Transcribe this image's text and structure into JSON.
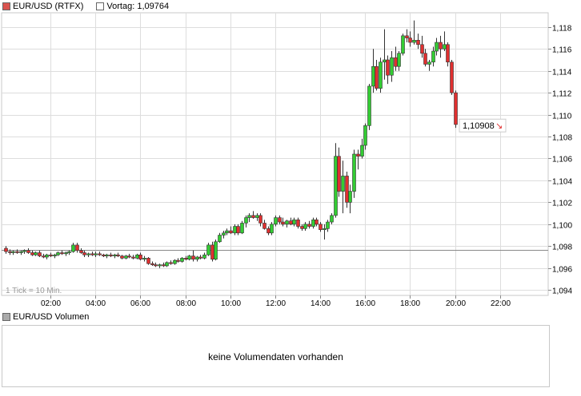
{
  "legend": {
    "series_label": "EUR/USD (RTFX)",
    "series_color": "#d9534f",
    "prev_label": "Vortag: 1,09764",
    "prev_color": "#ffffff"
  },
  "last_price_label": "1,10908",
  "last_price_arrow": "↘",
  "tick_note": "1 Tick = 10 Min.",
  "volume": {
    "legend_label": "EUR/USD Volumen",
    "legend_color": "#aaaaaa",
    "message": "keine Volumendaten vorhanden"
  },
  "colors": {
    "up": "#33cc33",
    "down": "#e03030",
    "grid": "#dddddd",
    "prev_line": "#888888"
  },
  "chart_data": {
    "type": "candlestick",
    "x_unit": "hours",
    "xlim": [
      0.0,
      24.5
    ],
    "ylim": [
      1.0935,
      1.1193
    ],
    "x_ticks": [
      2,
      4,
      6,
      8,
      10,
      12,
      14,
      16,
      18,
      20,
      22
    ],
    "x_tick_labels": [
      "02:00",
      "04:00",
      "06:00",
      "08:00",
      "10:00",
      "12:00",
      "14:00",
      "16:00",
      "18:00",
      "20:00",
      "22:00"
    ],
    "y_ticks": [
      1.094,
      1.096,
      1.098,
      1.1,
      1.102,
      1.104,
      1.106,
      1.108,
      1.11,
      1.112,
      1.114,
      1.116,
      1.118
    ],
    "y_tick_labels": [
      "1,094",
      "1,096",
      "1,098",
      "1,100",
      "1,102",
      "1,104",
      "1,106",
      "1,108",
      "1,110",
      "1,112",
      "1,114",
      "1,116",
      "1,118"
    ],
    "previous_close": 1.09764,
    "last": 1.10908,
    "grid": true,
    "candles": [
      [
        0.0,
        1.0978,
        1.098,
        1.0973,
        1.0975
      ],
      [
        0.17,
        1.0975,
        1.0977,
        1.0972,
        1.0974
      ],
      [
        0.33,
        1.0974,
        1.0976,
        1.0972,
        1.0975
      ],
      [
        0.5,
        1.0975,
        1.0977,
        1.0973,
        1.0974
      ],
      [
        0.67,
        1.0974,
        1.0976,
        1.0972,
        1.0975
      ],
      [
        0.83,
        1.0975,
        1.0977,
        1.0973,
        1.0976
      ],
      [
        1.0,
        1.0976,
        1.0978,
        1.0973,
        1.0974
      ],
      [
        1.17,
        1.0974,
        1.0976,
        1.0971,
        1.0972
      ],
      [
        1.33,
        1.0972,
        1.0975,
        1.0971,
        1.0974
      ],
      [
        1.5,
        1.0974,
        1.0976,
        1.097,
        1.0971
      ],
      [
        1.67,
        1.0971,
        1.0973,
        1.0969,
        1.097
      ],
      [
        1.83,
        1.097,
        1.0973,
        1.0968,
        1.0972
      ],
      [
        2.0,
        1.0972,
        1.0974,
        1.097,
        1.0971
      ],
      [
        2.17,
        1.0971,
        1.0973,
        1.0969,
        1.0972
      ],
      [
        2.33,
        1.0972,
        1.0975,
        1.0971,
        1.0974
      ],
      [
        2.5,
        1.0974,
        1.0976,
        1.0972,
        1.0973
      ],
      [
        2.67,
        1.0973,
        1.0975,
        1.0971,
        1.0974
      ],
      [
        2.83,
        1.0974,
        1.0976,
        1.0972,
        1.0975
      ],
      [
        3.0,
        1.0975,
        1.0983,
        1.0974,
        1.0981
      ],
      [
        3.17,
        1.0981,
        1.0983,
        1.0974,
        1.0976
      ],
      [
        3.33,
        1.0976,
        1.0978,
        1.0973,
        1.0974
      ],
      [
        3.5,
        1.0974,
        1.0976,
        1.097,
        1.0972
      ],
      [
        3.67,
        1.0972,
        1.0974,
        1.097,
        1.0973
      ],
      [
        3.83,
        1.0973,
        1.0975,
        1.0971,
        1.0972
      ],
      [
        4.0,
        1.0972,
        1.0975,
        1.097,
        1.0973
      ],
      [
        4.17,
        1.0973,
        1.0975,
        1.0971,
        1.0972
      ],
      [
        4.33,
        1.0972,
        1.0973,
        1.097,
        1.0971
      ],
      [
        4.5,
        1.0971,
        1.0973,
        1.0969,
        1.0972
      ],
      [
        4.67,
        1.0972,
        1.0974,
        1.097,
        1.0971
      ],
      [
        4.83,
        1.0971,
        1.0973,
        1.0969,
        1.0972
      ],
      [
        5.0,
        1.0972,
        1.0974,
        1.097,
        1.0971
      ],
      [
        5.17,
        1.0971,
        1.0972,
        1.0968,
        1.0969
      ],
      [
        5.33,
        1.0969,
        1.0972,
        1.0968,
        1.0971
      ],
      [
        5.5,
        1.0971,
        1.0973,
        1.0969,
        1.097
      ],
      [
        5.67,
        1.097,
        1.0972,
        1.0968,
        1.0969
      ],
      [
        5.83,
        1.0969,
        1.0973,
        1.0968,
        1.0972
      ],
      [
        6.0,
        1.0972,
        1.0974,
        1.0967,
        1.0968
      ],
      [
        6.17,
        1.0968,
        1.0971,
        1.0966,
        1.0969
      ],
      [
        6.33,
        1.0969,
        1.097,
        1.0963,
        1.0964
      ],
      [
        6.5,
        1.0964,
        1.0966,
        1.0962,
        1.0963
      ],
      [
        6.67,
        1.0963,
        1.0965,
        1.0961,
        1.0962
      ],
      [
        6.83,
        1.0962,
        1.0964,
        1.096,
        1.0963
      ],
      [
        7.0,
        1.0963,
        1.0965,
        1.0961,
        1.0962
      ],
      [
        7.17,
        1.0962,
        1.0966,
        1.0961,
        1.0965
      ],
      [
        7.33,
        1.0965,
        1.0967,
        1.0963,
        1.0964
      ],
      [
        7.5,
        1.0964,
        1.0968,
        1.0963,
        1.0967
      ],
      [
        7.67,
        1.0967,
        1.0969,
        1.0965,
        1.0966
      ],
      [
        7.83,
        1.0966,
        1.097,
        1.0965,
        1.0969
      ],
      [
        8.0,
        1.0969,
        1.0971,
        1.0967,
        1.0968
      ],
      [
        8.17,
        1.0968,
        1.0972,
        1.0967,
        1.0971
      ],
      [
        8.33,
        1.0971,
        1.0976,
        1.0966,
        1.0968
      ],
      [
        8.5,
        1.0968,
        1.0971,
        1.0966,
        1.097
      ],
      [
        8.67,
        1.097,
        1.0972,
        1.0968,
        1.0969
      ],
      [
        8.83,
        1.0969,
        1.0974,
        1.0968,
        1.0972
      ],
      [
        9.0,
        1.0972,
        1.0983,
        1.0971,
        1.0981
      ],
      [
        9.17,
        1.0981,
        1.0984,
        1.0966,
        1.0968
      ],
      [
        9.33,
        1.0968,
        1.0986,
        1.0967,
        1.0984
      ],
      [
        9.5,
        1.0984,
        1.0992,
        1.0983,
        1.099
      ],
      [
        9.67,
        1.099,
        1.0994,
        1.0987,
        1.0992
      ],
      [
        9.83,
        1.0992,
        1.0996,
        1.099,
        1.0994
      ],
      [
        10.0,
        1.0994,
        1.0998,
        1.0991,
        1.0992
      ],
      [
        10.17,
        1.0992,
        1.1,
        1.099,
        1.0998
      ],
      [
        10.33,
        1.0998,
        1.1,
        1.099,
        1.0992
      ],
      [
        10.5,
        1.0992,
        1.1003,
        1.0991,
        1.1001
      ],
      [
        10.67,
        1.1001,
        1.1008,
        1.0997,
        1.1006
      ],
      [
        10.83,
        1.1006,
        1.101,
        1.1002,
        1.1008
      ],
      [
        11.0,
        1.1008,
        1.1012,
        1.1005,
        1.1006
      ],
      [
        11.17,
        1.1006,
        1.101,
        1.1003,
        1.1008
      ],
      [
        11.33,
        1.1008,
        1.101,
        1.0998,
        1.1001
      ],
      [
        11.5,
        1.1001,
        1.1004,
        1.0995,
        1.0996
      ],
      [
        11.67,
        1.0996,
        1.0998,
        1.099,
        1.0992
      ],
      [
        11.83,
        1.0992,
        1.1002,
        1.099,
        1.1
      ],
      [
        12.0,
        1.1,
        1.1008,
        1.0998,
        1.1006
      ],
      [
        12.17,
        1.1006,
        1.1008,
        1.1,
        1.1002
      ],
      [
        12.33,
        1.1002,
        1.1006,
        1.0998,
        1.1
      ],
      [
        12.5,
        1.1,
        1.1004,
        1.0997,
        1.1003
      ],
      [
        12.67,
        1.1003,
        1.1006,
        1.0999,
        1.1
      ],
      [
        12.83,
        1.1,
        1.1006,
        1.0998,
        1.1004
      ],
      [
        13.0,
        1.1004,
        1.1006,
        1.0996,
        1.0998
      ],
      [
        13.17,
        1.0998,
        1.1,
        1.0994,
        1.0996
      ],
      [
        13.33,
        1.0996,
        1.1002,
        1.0994,
        1.1
      ],
      [
        13.5,
        1.1,
        1.1003,
        1.0996,
        1.0998
      ],
      [
        13.67,
        1.0998,
        1.1006,
        1.0996,
        1.1004
      ],
      [
        13.83,
        1.1004,
        1.1006,
        1.0998,
        1.1
      ],
      [
        14.0,
        1.1,
        1.1002,
        1.0993,
        1.0995
      ],
      [
        14.17,
        1.0995,
        1.1,
        1.0986,
        1.0996
      ],
      [
        14.33,
        1.0996,
        1.1004,
        1.0993,
        1.1002
      ],
      [
        14.5,
        1.1002,
        1.101,
        1.1,
        1.1008
      ],
      [
        14.67,
        1.1008,
        1.1074,
        1.1006,
        1.1062
      ],
      [
        14.83,
        1.1062,
        1.107,
        1.1025,
        1.103
      ],
      [
        15.0,
        1.103,
        1.1058,
        1.101,
        1.1044
      ],
      [
        15.17,
        1.1044,
        1.1048,
        1.1015,
        1.102
      ],
      [
        15.33,
        1.102,
        1.1036,
        1.101,
        1.103
      ],
      [
        15.5,
        1.103,
        1.1068,
        1.1024,
        1.1064
      ],
      [
        15.67,
        1.1064,
        1.1068,
        1.105,
        1.1062
      ],
      [
        15.83,
        1.1062,
        1.1078,
        1.106,
        1.1072
      ],
      [
        16.0,
        1.1072,
        1.1092,
        1.1068,
        1.109
      ],
      [
        16.17,
        1.109,
        1.1128,
        1.1086,
        1.1126
      ],
      [
        16.33,
        1.1126,
        1.116,
        1.112,
        1.1144
      ],
      [
        16.5,
        1.1144,
        1.115,
        1.1122,
        1.1124
      ],
      [
        16.67,
        1.1124,
        1.1152,
        1.112,
        1.1148
      ],
      [
        16.83,
        1.1148,
        1.1178,
        1.1132,
        1.115
      ],
      [
        17.0,
        1.115,
        1.1154,
        1.1128,
        1.1136
      ],
      [
        17.17,
        1.1136,
        1.1158,
        1.113,
        1.1152
      ],
      [
        17.33,
        1.1152,
        1.1162,
        1.114,
        1.1144
      ],
      [
        17.5,
        1.1144,
        1.1158,
        1.114,
        1.1156
      ],
      [
        17.67,
        1.1156,
        1.1174,
        1.1154,
        1.1172
      ],
      [
        17.83,
        1.1172,
        1.1178,
        1.1166,
        1.117
      ],
      [
        18.0,
        1.117,
        1.1176,
        1.1162,
        1.1166
      ],
      [
        18.17,
        1.1166,
        1.1186,
        1.1164,
        1.1168
      ],
      [
        18.33,
        1.1168,
        1.1174,
        1.116,
        1.1164
      ],
      [
        18.5,
        1.1164,
        1.1172,
        1.1152,
        1.1156
      ],
      [
        18.67,
        1.1156,
        1.116,
        1.1144,
        1.1146
      ],
      [
        18.83,
        1.1146,
        1.115,
        1.114,
        1.1148
      ],
      [
        19.0,
        1.1148,
        1.1162,
        1.1144,
        1.1158
      ],
      [
        19.17,
        1.1158,
        1.117,
        1.1154,
        1.1166
      ],
      [
        19.33,
        1.1166,
        1.1172,
        1.1152,
        1.116
      ],
      [
        19.5,
        1.116,
        1.1176,
        1.1158,
        1.1164
      ],
      [
        19.67,
        1.1164,
        1.1166,
        1.1144,
        1.1148
      ],
      [
        19.83,
        1.1148,
        1.115,
        1.1118,
        1.112
      ],
      [
        20.0,
        1.112,
        1.1122,
        1.1088,
        1.1091
      ]
    ]
  }
}
